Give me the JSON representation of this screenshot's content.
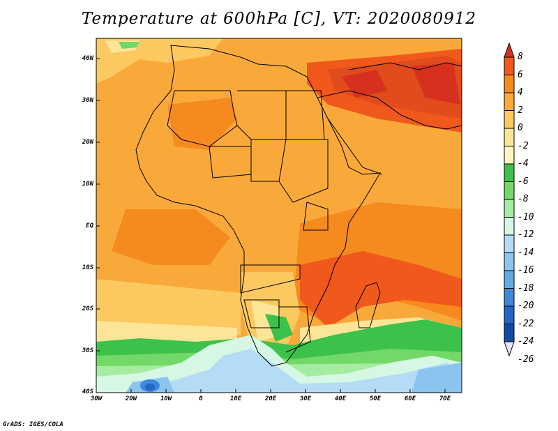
{
  "title": "Temperature at 600hPa [C], VT: 2020080912",
  "credit": "GrADS: IGES/COLA",
  "lat_labels": [
    "40N",
    "30N",
    "20N",
    "10N",
    "EQ",
    "10S",
    "20S",
    "30S",
    "40S"
  ],
  "lon_labels": [
    "30W",
    "20W",
    "10W",
    "0",
    "10E",
    "20E",
    "30E",
    "40E",
    "50E",
    "60E",
    "70E"
  ],
  "colorbar": {
    "labels": [
      "8",
      "6",
      "4",
      "2",
      "0",
      "-2",
      "-4",
      "-6",
      "-8",
      "-10",
      "-12",
      "-14",
      "-16",
      "-18",
      "-20",
      "-22",
      "-24",
      "-26"
    ],
    "colors": [
      "#d7301f",
      "#f0581c",
      "#f58a1f",
      "#f9a93a",
      "#fcc860",
      "#fde597",
      "#fff5c0",
      "#3cc24a",
      "#72d868",
      "#a6eca0",
      "#d6f7e4",
      "#b4dcf7",
      "#8cc4f0",
      "#64a8e6",
      "#3e88da",
      "#2466c8",
      "#1248a8",
      "#0a2a78"
    ]
  },
  "regions": {
    "ocean_north": "#fcc860",
    "west_land": "#f9a93a",
    "east_hot": "#f58a1f",
    "arabia_iran": "#e04c1c",
    "south_africa_cool": "#fde597",
    "southern_ocean_green": "#3cc24a",
    "southern_ocean_blue": "#b4dcf7",
    "cold_core": "#2466c8"
  }
}
